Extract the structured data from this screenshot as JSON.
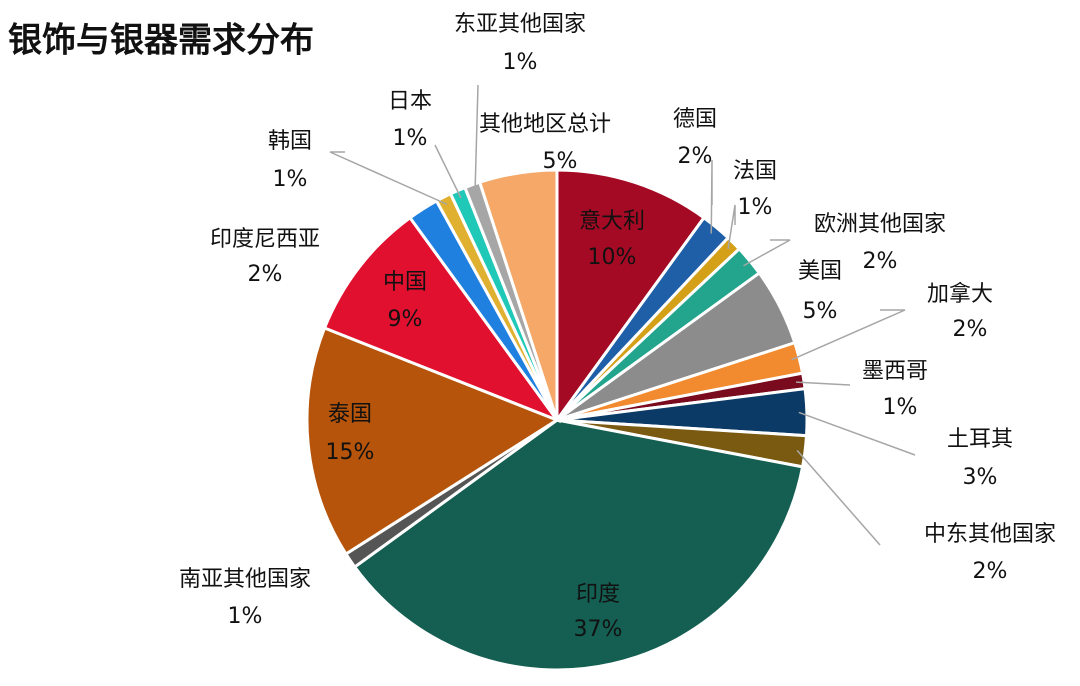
{
  "chart_data": {
    "type": "pie",
    "title": "银饰与银器需求分布",
    "categories": [
      "意大利",
      "德国",
      "法国",
      "欧洲其他国家",
      "美国",
      "加拿大",
      "墨西哥",
      "土耳其",
      "中东其他国家",
      "印度",
      "南亚其他国家",
      "泰国",
      "中国",
      "印度尼西亚",
      "韩国",
      "日本",
      "东亚其他国家",
      "其他地区总计"
    ],
    "values": [
      10,
      2,
      1,
      2,
      5,
      2,
      1,
      3,
      2,
      37,
      1,
      15,
      9,
      2,
      1,
      1,
      1,
      5
    ],
    "value_labels": [
      "10%",
      "2%",
      "1%",
      "2%",
      "5%",
      "2%",
      "1%",
      "3%",
      "2%",
      "37%",
      "1%",
      "15%",
      "9%",
      "2%",
      "1%",
      "1%",
      "1%",
      "5%"
    ],
    "colors": [
      "#a50a24",
      "#1f5fa8",
      "#d4a017",
      "#22a58c",
      "#8c8c8c",
      "#f28a30",
      "#7a0a1e",
      "#0b3a66",
      "#7a5a10",
      "#145e52",
      "#555555",
      "#b5540a",
      "#e0102e",
      "#2080e0",
      "#e0b030",
      "#20c8b8",
      "#a6a6a6",
      "#f5a868"
    ]
  }
}
